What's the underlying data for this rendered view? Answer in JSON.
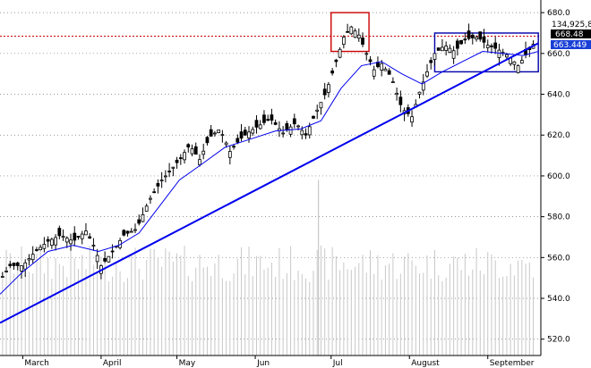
{
  "chart_data": {
    "type": "candlestick",
    "y_axis": {
      "min": 512,
      "max": 684,
      "ticks": [
        520,
        540,
        560,
        580,
        600,
        620,
        640,
        660,
        680
      ],
      "tick_labels": [
        "520.0",
        "540.0",
        "560.0",
        "580.0",
        "600.0",
        "620.0",
        "640.0",
        "660.0",
        "680.0"
      ],
      "grid": "dotted-horizontal"
    },
    "x_axis": {
      "months": [
        {
          "label": "March",
          "day": 0
        },
        {
          "label": "April",
          "day": 31
        },
        {
          "label": "May",
          "day": 61
        },
        {
          "label": "Jun",
          "day": 92
        },
        {
          "label": "Jul",
          "day": 122
        },
        {
          "label": "August",
          "day": 153
        },
        {
          "label": "September",
          "day": 184
        }
      ],
      "day_min": -9,
      "day_max": 205
    },
    "badges": {
      "volume_label": "134,925,82",
      "price_high_label": "668.48",
      "ma_label": "663.449"
    },
    "reference_line": {
      "value": 668.48,
      "color": "#cc0000",
      "style": "dotted"
    },
    "trendline": {
      "from": {
        "day": -9,
        "price": 528
      },
      "to": {
        "day": 204,
        "price": 665
      },
      "color": "#0000ee"
    },
    "boxes": [
      {
        "day_from": 122,
        "day_to": 137,
        "price_from": 661,
        "price_to": 680,
        "color": "#cc0000"
      },
      {
        "day_from": 163,
        "day_to": 204,
        "price_from": 651,
        "price_to": 670,
        "color": "#0000aa"
      }
    ],
    "close_series_anchors": [
      [
        -9,
        549
      ],
      [
        -5,
        556
      ],
      [
        0,
        556
      ],
      [
        5,
        563
      ],
      [
        10,
        568
      ],
      [
        15,
        571
      ],
      [
        20,
        568
      ],
      [
        25,
        573
      ],
      [
        28,
        566
      ],
      [
        31,
        556
      ],
      [
        35,
        562
      ],
      [
        40,
        571
      ],
      [
        45,
        574
      ],
      [
        50,
        588
      ],
      [
        55,
        598
      ],
      [
        58,
        602
      ],
      [
        62,
        608
      ],
      [
        66,
        615
      ],
      [
        70,
        608
      ],
      [
        74,
        619
      ],
      [
        78,
        623
      ],
      [
        82,
        612
      ],
      [
        86,
        618
      ],
      [
        90,
        622
      ],
      [
        94,
        625
      ],
      [
        98,
        628
      ],
      [
        103,
        621
      ],
      [
        108,
        626
      ],
      [
        112,
        620
      ],
      [
        116,
        631
      ],
      [
        120,
        641
      ],
      [
        124,
        656
      ],
      [
        127,
        668
      ],
      [
        130,
        673
      ],
      [
        133,
        669
      ],
      [
        136,
        660
      ],
      [
        139,
        652
      ],
      [
        142,
        655
      ],
      [
        146,
        648
      ],
      [
        150,
        633
      ],
      [
        154,
        629
      ],
      [
        157,
        641
      ],
      [
        160,
        651
      ],
      [
        163,
        660
      ],
      [
        167,
        664
      ],
      [
        171,
        661
      ],
      [
        175,
        667
      ],
      [
        180,
        668
      ],
      [
        184,
        664
      ],
      [
        188,
        662
      ],
      [
        192,
        659
      ],
      [
        196,
        654
      ],
      [
        200,
        661
      ],
      [
        204,
        668
      ]
    ],
    "ma_anchors": [
      [
        -9,
        542
      ],
      [
        0,
        553
      ],
      [
        10,
        563
      ],
      [
        20,
        566
      ],
      [
        30,
        563
      ],
      [
        38,
        566
      ],
      [
        46,
        572
      ],
      [
        54,
        585
      ],
      [
        62,
        598
      ],
      [
        70,
        605
      ],
      [
        80,
        614
      ],
      [
        90,
        618
      ],
      [
        100,
        622
      ],
      [
        110,
        623
      ],
      [
        118,
        627
      ],
      [
        126,
        643
      ],
      [
        134,
        654
      ],
      [
        142,
        656
      ],
      [
        150,
        650
      ],
      [
        158,
        645
      ],
      [
        166,
        651
      ],
      [
        174,
        656
      ],
      [
        182,
        661
      ],
      [
        190,
        660
      ],
      [
        198,
        659
      ],
      [
        204,
        661
      ]
    ],
    "volume_bar_tallest": {
      "day": 117,
      "price_level": 598
    },
    "candle_interval_days": 1.5,
    "candle_color": "#000000",
    "volume_color": "#c8c8c8",
    "ma_color": "#0000ee",
    "trend_color": "#0000ee"
  }
}
